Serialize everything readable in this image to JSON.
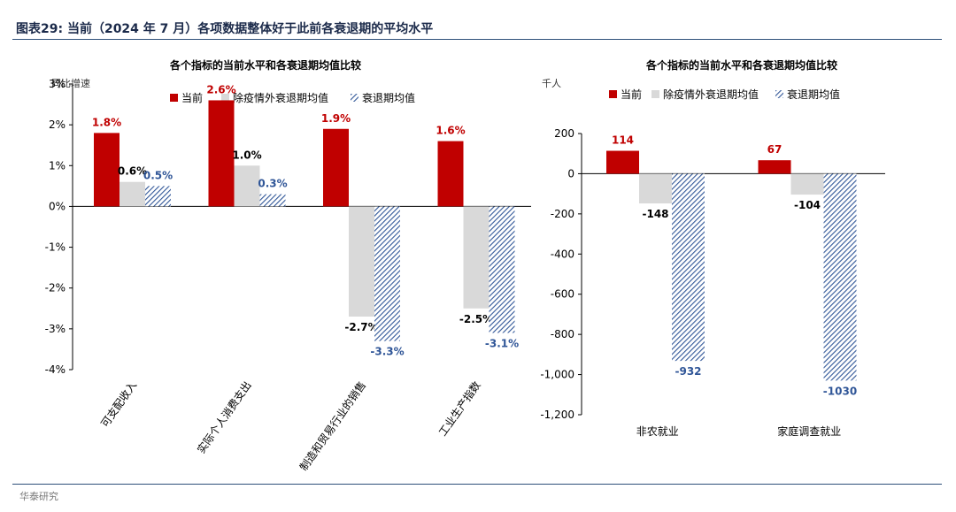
{
  "header": {
    "title": "图表29:  当前（2024 年 7 月）各项数据整体好于此前各衰退期的平均水平"
  },
  "footer": {
    "source": "华泰研究"
  },
  "colors": {
    "current": "#c00000",
    "ex_epidemic": "#d9d9d9",
    "recession": "#2f5597",
    "label_blue": "#2f5597",
    "title_navy": "#1b2a4a"
  },
  "chart_data": [
    {
      "type": "bar",
      "title": "各个指标的当前水平和各衰退期均值比较",
      "ylabel": "同比增速",
      "ylim": [
        -4,
        3
      ],
      "yticks": [
        "3%",
        "2%",
        "1%",
        "0%",
        "-1%",
        "-2%",
        "-3%",
        "-4%"
      ],
      "categories": [
        "可支配收入",
        "实际个人消费支出",
        "制造和贸易行业的销售",
        "工业生产指数"
      ],
      "series": [
        {
          "name": "当前",
          "values": [
            1.8,
            2.6,
            1.9,
            1.6
          ],
          "labels": [
            "1.8%",
            "2.6%",
            "1.9%",
            "1.6%"
          ]
        },
        {
          "name": "除疫情外衰退期均值",
          "values": [
            0.6,
            1.0,
            -2.7,
            -2.5
          ],
          "labels": [
            "0.6%",
            "1.0%",
            "-2.7%",
            "-2.5%"
          ]
        },
        {
          "name": "衰退期均值",
          "values": [
            0.5,
            0.3,
            -3.3,
            -3.1
          ],
          "labels": [
            "0.5%",
            "0.3%",
            "-3.3%",
            "-3.1%"
          ]
        }
      ],
      "grid": false,
      "legend": "top"
    },
    {
      "type": "bar",
      "title": "各个指标的当前水平和各衰退期均值比较",
      "ylabel": "千人",
      "ylim": [
        -1200,
        200
      ],
      "yticks": [
        "200",
        "0",
        "-200",
        "-400",
        "-600",
        "-800",
        "-1,000",
        "-1,200"
      ],
      "categories": [
        "非农就业",
        "家庭调查就业"
      ],
      "series": [
        {
          "name": "当前",
          "values": [
            114,
            67
          ],
          "labels": [
            "114",
            "67"
          ]
        },
        {
          "name": "除疫情外衰退期均值",
          "values": [
            -148,
            -104
          ],
          "labels": [
            "-148",
            "-104"
          ]
        },
        {
          "name": "衰退期均值",
          "values": [
            -932,
            -1030
          ],
          "labels": [
            "-932",
            "-1030"
          ]
        }
      ],
      "grid": false,
      "legend": "top"
    }
  ]
}
